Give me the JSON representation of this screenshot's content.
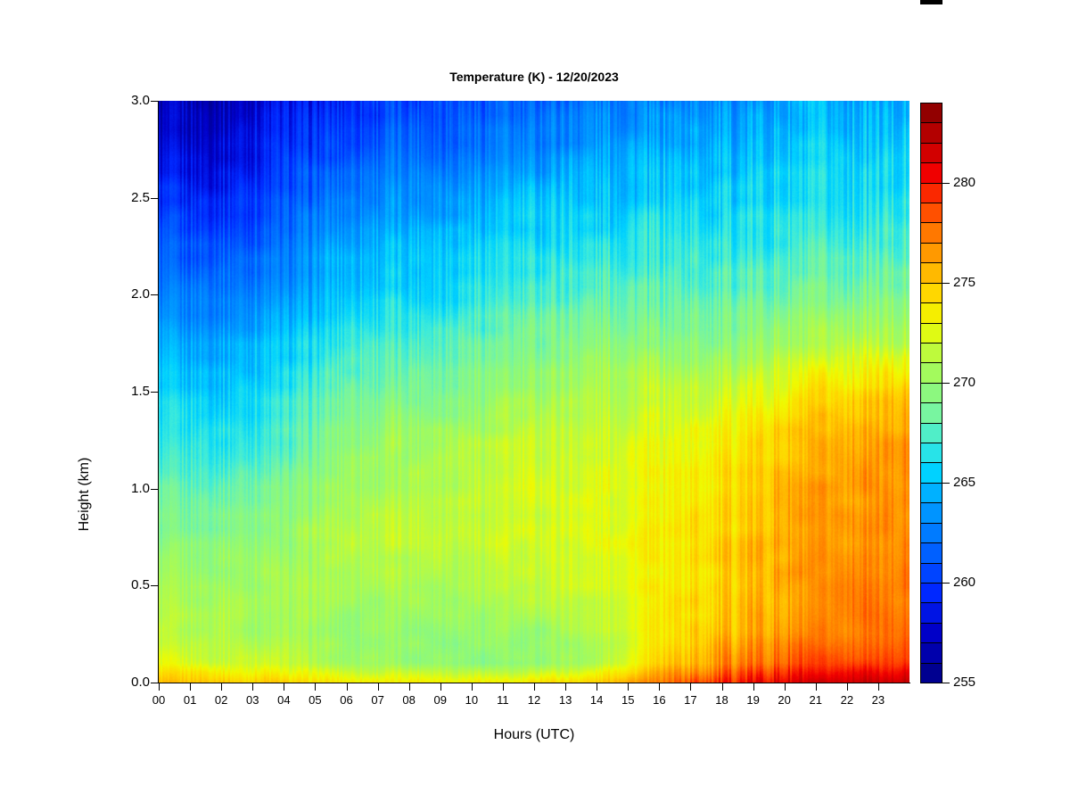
{
  "window": {
    "background": "#ffffff"
  },
  "decorations": {
    "clipped_bar_color": "#000000"
  },
  "chart_data": {
    "type": "heatmap",
    "title": "Temperature (K) - 12/20/2023",
    "xlabel": "Hours (UTC)",
    "ylabel": "Height (km)",
    "xlim": [
      0,
      24
    ],
    "ylim": [
      0,
      3
    ],
    "x_tick_labels": [
      "00",
      "01",
      "02",
      "03",
      "04",
      "05",
      "06",
      "07",
      "08",
      "09",
      "10",
      "11",
      "12",
      "13",
      "14",
      "15",
      "16",
      "17",
      "18",
      "19",
      "20",
      "21",
      "22",
      "23"
    ],
    "y_tick_values": [
      0,
      0.5,
      1,
      1.5,
      2,
      2.5,
      3
    ],
    "y_tick_labels": [
      "0.0",
      "0.5",
      "1.0",
      "1.5",
      "2.0",
      "2.5",
      "3.0"
    ],
    "colorbar": {
      "min": 255,
      "max": 284,
      "cell_step": 1,
      "tick_values": [
        255,
        260,
        265,
        270,
        275,
        280
      ],
      "tick_labels": [
        "255",
        "260",
        "265",
        "270",
        "275",
        "280"
      ]
    },
    "colormap_anchors": [
      [
        255.0,
        0,
        0,
        130
      ],
      [
        257.5,
        0,
        0,
        200
      ],
      [
        259.5,
        0,
        40,
        255
      ],
      [
        262.0,
        0,
        110,
        255
      ],
      [
        264.0,
        0,
        160,
        255
      ],
      [
        265.5,
        0,
        210,
        255
      ],
      [
        267.0,
        60,
        235,
        220
      ],
      [
        268.5,
        120,
        245,
        160
      ],
      [
        270.0,
        150,
        250,
        110
      ],
      [
        271.5,
        190,
        250,
        60
      ],
      [
        273.0,
        240,
        250,
        0
      ],
      [
        274.5,
        255,
        215,
        0
      ],
      [
        276.0,
        255,
        170,
        0
      ],
      [
        277.5,
        255,
        120,
        0
      ],
      [
        279.0,
        255,
        60,
        0
      ],
      [
        280.5,
        240,
        0,
        0
      ],
      [
        282.0,
        195,
        0,
        0
      ],
      [
        284.0,
        130,
        0,
        0
      ]
    ],
    "grid": {
      "hours": [
        0,
        2,
        4,
        6,
        8,
        10,
        12,
        14,
        16,
        18,
        20,
        22,
        24
      ],
      "heights_km": [
        0,
        0.1,
        0.25,
        0.5,
        0.75,
        1.0,
        1.25,
        1.5,
        1.75,
        2.0,
        2.25,
        2.5,
        2.75,
        3.0
      ],
      "temperature_K": [
        [
          275.5,
          275.0,
          274.5,
          273.5,
          273.5,
          273.5,
          274.0,
          274.5,
          277.5,
          279.5,
          281.0,
          281.5,
          282.0
        ],
        [
          272.5,
          272.0,
          271.5,
          270.5,
          270.0,
          269.5,
          269.5,
          271.0,
          274.5,
          276.5,
          278.0,
          279.0,
          279.5
        ],
        [
          271.5,
          271.0,
          270.5,
          270.0,
          270.0,
          270.0,
          270.0,
          271.0,
          273.5,
          275.5,
          276.5,
          277.5,
          278.0
        ],
        [
          270.5,
          270.5,
          270.5,
          270.5,
          271.0,
          271.0,
          271.5,
          272.0,
          273.5,
          274.5,
          276.0,
          277.0,
          277.5
        ],
        [
          269.0,
          269.5,
          270.0,
          271.5,
          271.5,
          272.0,
          272.0,
          272.5,
          273.5,
          274.5,
          276.0,
          276.5,
          277.0
        ],
        [
          268.0,
          268.0,
          269.0,
          270.5,
          271.0,
          271.5,
          272.0,
          272.5,
          273.0,
          274.0,
          275.5,
          276.5,
          277.0
        ],
        [
          266.5,
          266.5,
          267.5,
          270.0,
          270.5,
          271.0,
          271.5,
          272.0,
          272.5,
          273.5,
          275.0,
          276.0,
          276.5
        ],
        [
          265.5,
          265.5,
          266.5,
          268.5,
          269.0,
          269.5,
          270.5,
          271.0,
          271.5,
          271.5,
          273.0,
          274.5,
          275.0
        ],
        [
          264.0,
          264.0,
          265.0,
          267.0,
          267.5,
          268.0,
          269.0,
          269.5,
          269.5,
          269.5,
          270.5,
          271.0,
          271.5
        ],
        [
          262.5,
          262.5,
          263.5,
          265.5,
          266.0,
          266.5,
          267.5,
          268.0,
          268.0,
          268.0,
          268.5,
          269.0,
          269.0
        ],
        [
          261.0,
          261.0,
          262.0,
          264.5,
          265.0,
          265.5,
          266.0,
          266.5,
          267.0,
          266.5,
          267.0,
          267.0,
          267.5
        ],
        [
          259.5,
          259.5,
          261.0,
          262.5,
          263.5,
          264.0,
          265.0,
          265.0,
          265.5,
          265.5,
          266.0,
          266.0,
          266.5
        ],
        [
          258.0,
          258.0,
          259.5,
          261.0,
          262.0,
          262.5,
          263.0,
          264.0,
          264.5,
          264.5,
          265.0,
          265.5,
          265.5
        ],
        [
          257.0,
          257.0,
          258.5,
          259.5,
          260.5,
          261.0,
          261.5,
          262.5,
          263.0,
          263.5,
          264.0,
          264.5,
          264.5
        ]
      ]
    }
  }
}
